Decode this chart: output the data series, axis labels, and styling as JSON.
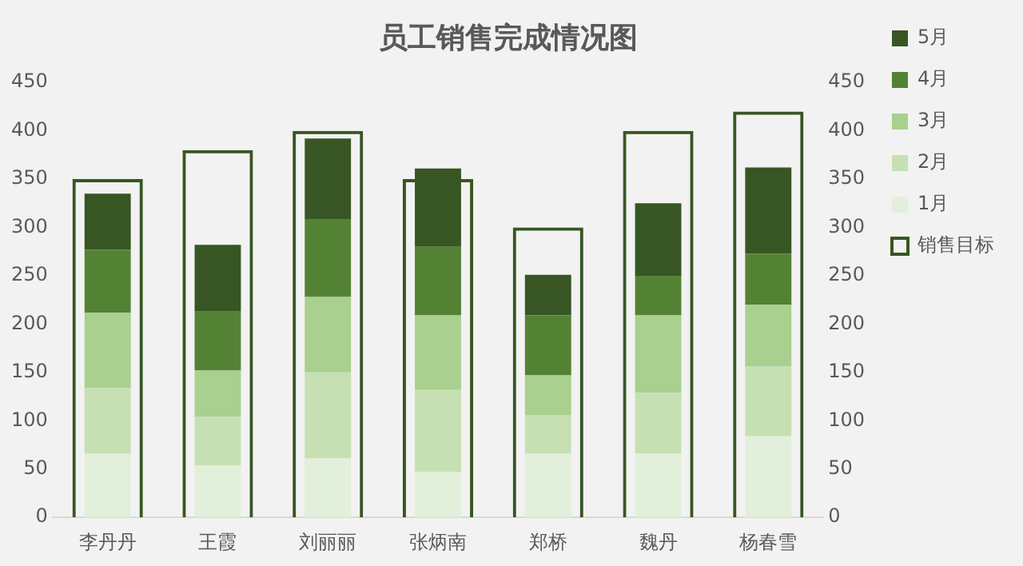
{
  "chart_data": {
    "type": "bar",
    "title": "员工销售完成情况图",
    "categories": [
      "李丹丹",
      "王霞",
      "刘丽丽",
      "张炳南",
      "郑桥",
      "魏丹",
      "杨春雪"
    ],
    "stacked": true,
    "series": [
      {
        "name": "1月",
        "color": "#e2efda",
        "values": [
          66,
          54,
          61,
          47,
          66,
          66,
          84
        ]
      },
      {
        "name": "2月",
        "color": "#c6e0b4",
        "values": [
          68,
          50,
          89,
          85,
          40,
          63,
          72
        ]
      },
      {
        "name": "3月",
        "color": "#a9d08e",
        "values": [
          78,
          48,
          78,
          77,
          41,
          80,
          64
        ]
      },
      {
        "name": "4月",
        "color": "#548235",
        "values": [
          65,
          61,
          80,
          71,
          62,
          41,
          53
        ]
      },
      {
        "name": "5月",
        "color": "#375623",
        "values": [
          58,
          69,
          84,
          81,
          42,
          75,
          89
        ]
      },
      {
        "name": "销售目标",
        "color": "#375623",
        "axis": "y2",
        "values": [
          350,
          380,
          400,
          350,
          300,
          400,
          420
        ]
      }
    ],
    "ylim": [
      0,
      450
    ],
    "yticks": [
      0,
      50,
      100,
      150,
      200,
      250,
      300,
      350,
      400,
      450
    ],
    "y2lim": [
      0,
      450
    ],
    "y2ticks": [
      0,
      50,
      100,
      150,
      200,
      250,
      300,
      350,
      400,
      450
    ],
    "grid": false,
    "legend": "right"
  }
}
